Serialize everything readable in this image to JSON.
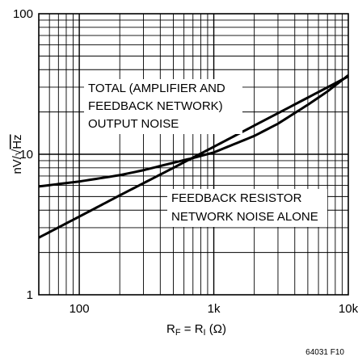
{
  "chart_data": {
    "type": "line",
    "x_scale": "log",
    "y_scale": "log",
    "xlim": [
      50,
      10000
    ],
    "ylim": [
      1,
      100
    ],
    "x_ticks": [
      {
        "value": 100,
        "label": "100"
      },
      {
        "value": 1000,
        "label": "1k"
      },
      {
        "value": 10000,
        "label": "10k"
      }
    ],
    "y_ticks": [
      {
        "value": 1,
        "label": "1"
      },
      {
        "value": 10,
        "label": "10"
      },
      {
        "value": 100,
        "label": "100"
      }
    ],
    "grid": true,
    "xlabel": {
      "main": "R",
      "sub1": "F",
      "eq": " = R",
      "sub2": "I",
      "unit": " (Ω)"
    },
    "ylabel": {
      "prefix": "nV/√",
      "radicand": "Hz"
    },
    "series": [
      {
        "annotation": [
          "TOTAL (AMPLIFIER AND",
          "FEEDBACK NETWORK)",
          "OUTPUT NOISE"
        ],
        "x": [
          50,
          100,
          200,
          300,
          500,
          700,
          1000,
          2000,
          3000,
          5000,
          7000,
          10000
        ],
        "y": [
          5.9,
          6.4,
          7.1,
          7.7,
          8.7,
          9.4,
          10.3,
          13.5,
          16.5,
          22.5,
          28.0,
          36.5
        ]
      },
      {
        "annotation": [
          "FEEDBACK RESISTOR",
          "NETWORK NOISE ALONE"
        ],
        "x": [
          50,
          100,
          200,
          500,
          1000,
          2000,
          5000,
          10000
        ],
        "y": [
          2.55,
          3.6,
          5.1,
          8.0,
          11.3,
          16.0,
          25.3,
          35.8
        ]
      }
    ],
    "figure_id": "64031 F10"
  }
}
